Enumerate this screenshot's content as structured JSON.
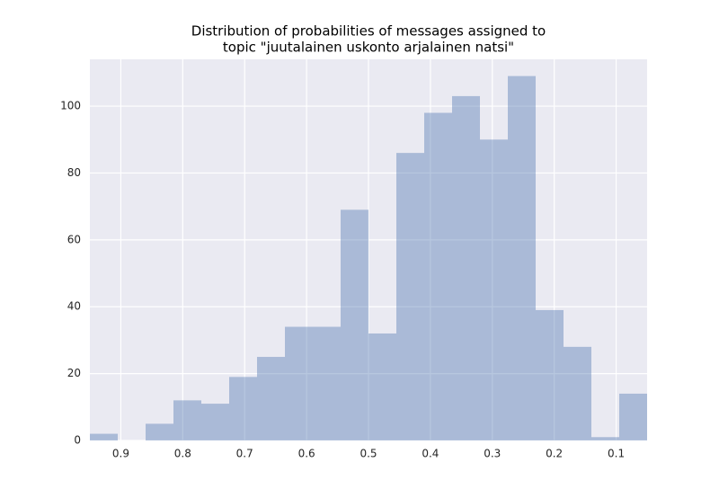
{
  "chart_data": {
    "type": "histogram",
    "title": [
      "Distribution of probabilities of messages assigned to",
      "topic \"juutalainen uskonto arjalainen natsi\""
    ],
    "bins": [
      0.95,
      0.905,
      0.86,
      0.815,
      0.77,
      0.725,
      0.68,
      0.635,
      0.59,
      0.545,
      0.5,
      0.455,
      0.41,
      0.365,
      0.32,
      0.275,
      0.23,
      0.185,
      0.14,
      0.095,
      0.05
    ],
    "values": [
      2,
      0,
      5,
      12,
      11,
      19,
      25,
      34,
      34,
      69,
      32,
      86,
      98,
      103,
      90,
      109,
      39,
      28,
      1,
      14
    ],
    "color": "#4c72b0",
    "xlim": [
      0.95,
      0.05
    ],
    "xticks": [
      0.9,
      0.8,
      0.7,
      0.6,
      0.5,
      0.4,
      0.3,
      0.2,
      0.1
    ],
    "ylim": [
      0,
      114
    ],
    "yticks": [
      0,
      20,
      40,
      60,
      80,
      100
    ],
    "grid": true
  }
}
